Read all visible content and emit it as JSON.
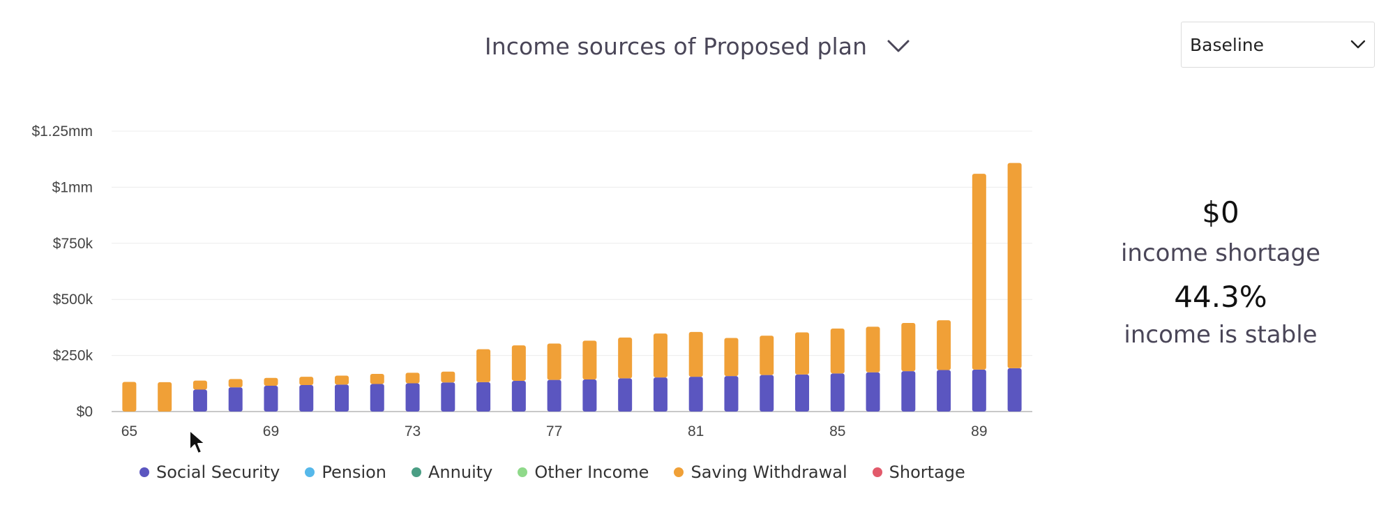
{
  "header": {
    "title": "Income sources of Proposed plan",
    "title_dropdown_icon": "chevron-down-icon"
  },
  "scenario_select": {
    "value": "Baseline",
    "icon": "chevron-down-icon"
  },
  "summary": {
    "shortage_value": "$0",
    "shortage_label": "income shortage",
    "stable_value": "44.3%",
    "stable_label": "income is stable"
  },
  "legend": [
    {
      "label": "Social Security",
      "color": "#5b56c0"
    },
    {
      "label": "Pension",
      "color": "#56b8ea"
    },
    {
      "label": "Annuity",
      "color": "#4a9e84"
    },
    {
      "label": "Other Income",
      "color": "#8fd98a"
    },
    {
      "label": "Saving Withdrawal",
      "color": "#f0a037"
    },
    {
      "label": "Shortage",
      "color": "#e25a6b"
    }
  ],
  "chart_data": {
    "type": "bar",
    "stacked": true,
    "x_ticks": [
      "65",
      "69",
      "73",
      "77",
      "81",
      "85",
      "89"
    ],
    "y_ticks": [
      {
        "value": 0,
        "label": "$0"
      },
      {
        "value": 250000,
        "label": "$250k"
      },
      {
        "value": 500000,
        "label": "$500k"
      },
      {
        "value": 750000,
        "label": "$750k"
      },
      {
        "value": 1000000,
        "label": "$1mm"
      },
      {
        "value": 1250000,
        "label": "$1.25mm"
      }
    ],
    "ylim": [
      0,
      1250000
    ],
    "grid": true,
    "categories": [
      65,
      66,
      67,
      68,
      69,
      70,
      71,
      72,
      73,
      74,
      75,
      76,
      77,
      78,
      79,
      80,
      81,
      82,
      83,
      84,
      85,
      86,
      87,
      88,
      89,
      90
    ],
    "series": [
      {
        "name": "Social Security",
        "color": "#5b56c0",
        "values": [
          0,
          0,
          98000,
          108000,
          115000,
          118000,
          120000,
          123000,
          126000,
          130000,
          131000,
          137000,
          141000,
          143000,
          148000,
          152000,
          155000,
          158000,
          163000,
          165000,
          170000,
          175000,
          180000,
          185000,
          187000,
          193000
        ]
      },
      {
        "name": "Saving Withdrawal",
        "color": "#f0a037",
        "values": [
          132000,
          131000,
          40000,
          37000,
          35000,
          37000,
          40000,
          45000,
          47000,
          48000,
          147000,
          158000,
          162000,
          173000,
          182000,
          196000,
          200000,
          170000,
          175000,
          188000,
          200000,
          203000,
          215000,
          222000,
          873000,
          915000
        ]
      }
    ]
  }
}
